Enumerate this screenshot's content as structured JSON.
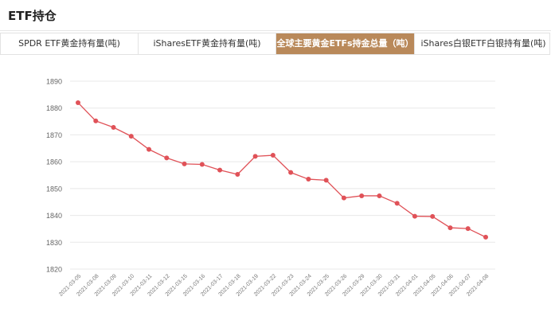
{
  "header": {
    "title": "ETF持仓"
  },
  "tabs": [
    {
      "label": "SPDR ETF黄金持有量(吨)",
      "active": false
    },
    {
      "label": "iSharesETF黄金持有量(吨)",
      "active": false
    },
    {
      "label": "全球主要黄金ETFs持金总量（吨）",
      "active": true
    },
    {
      "label": "iShares白银ETF白银持有量(吨)",
      "active": false
    }
  ],
  "colors": {
    "accent": "#b9895a",
    "line": "#e05258",
    "grid": "#e8e8e8"
  },
  "chart_data": {
    "type": "line",
    "title": "",
    "xlabel": "",
    "ylabel": "",
    "ylim": [
      1820,
      1890
    ],
    "yticks": [
      1820,
      1830,
      1840,
      1850,
      1860,
      1870,
      1880,
      1890
    ],
    "grid": true,
    "legend": "none",
    "categories": [
      "2021-03-05",
      "2021-03-08",
      "2021-03-09",
      "2021-03-10",
      "2021-03-11",
      "2021-03-12",
      "2021-03-15",
      "2021-03-16",
      "2021-03-17",
      "2021-03-18",
      "2021-03-19",
      "2021-03-22",
      "2021-03-23",
      "2021-03-24",
      "2021-03-25",
      "2021-03-26",
      "2021-03-29",
      "2021-03-30",
      "2021-03-31",
      "2021-04-01",
      "2021-04-05",
      "2021-04-06",
      "2021-04-07",
      "2021-04-08"
    ],
    "series": [
      {
        "name": "",
        "values": [
          1882.0,
          1875.2,
          1872.8,
          1869.5,
          1864.6,
          1861.4,
          1859.2,
          1859.0,
          1856.9,
          1855.3,
          1862.0,
          1862.4,
          1856.0,
          1853.5,
          1853.1,
          1846.5,
          1847.3,
          1847.3,
          1844.5,
          1839.7,
          1839.6,
          1835.4,
          1835.1,
          1831.9
        ]
      }
    ]
  }
}
